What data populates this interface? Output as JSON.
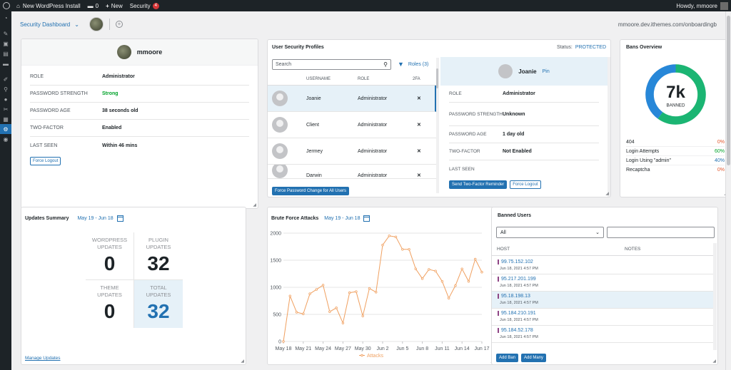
{
  "adminbar": {
    "site_name": "New WordPress Install",
    "comments_count": "0",
    "new_label": "New",
    "security_label": "Security",
    "security_count": "4",
    "howdy": "Howdy, mmoore"
  },
  "topbar": {
    "dashboard_label": "Security Dashboard",
    "site_url": "mmoore.dev.ithemes.com/onboardingb"
  },
  "user_card": {
    "name": "mmoore",
    "rows": [
      {
        "key": "ROLE",
        "value": "Administrator"
      },
      {
        "key": "PASSWORD STRENGTH",
        "value": "Strong"
      },
      {
        "key": "PASSWORD AGE",
        "value": "38 seconds old"
      },
      {
        "key": "TWO-FACTOR",
        "value": "Enabled"
      },
      {
        "key": "LAST SEEN",
        "value": "Within 46 mins"
      }
    ],
    "force_logout": "Force Logout"
  },
  "profiles": {
    "title": "User Security Profiles",
    "status_label": "Status:",
    "status_value": "PROTECTED",
    "search_placeholder": "Search",
    "roles_filter": "Roles (3)",
    "columns": [
      "USERNAME",
      "ROLE",
      "2FA"
    ],
    "users": [
      {
        "username": "Joanie",
        "role": "Administrator",
        "twofa": "✕"
      },
      {
        "username": "Client",
        "role": "Administrator",
        "twofa": "✕"
      },
      {
        "username": "Jermey",
        "role": "Administrator",
        "twofa": "✕"
      },
      {
        "username": "Darwin",
        "role": "Administrator",
        "twofa": "✕"
      }
    ],
    "force_all_button": "Force Password Change for All Users",
    "detail": {
      "name": "Joanie",
      "pin": "Pin",
      "rows": [
        {
          "key": "ROLE",
          "value": "Administrator"
        },
        {
          "key": "PASSWORD STRENGTH",
          "value": "Unknown"
        },
        {
          "key": "PASSWORD AGE",
          "value": "1 day old"
        },
        {
          "key": "TWO-FACTOR",
          "value": "Not Enabled"
        },
        {
          "key": "LAST SEEN",
          "value": ""
        }
      ],
      "reminder_button": "Send Two-Factor Reminder",
      "force_logout": "Force Logout"
    }
  },
  "bans_overview": {
    "title": "Bans Overview",
    "total": "7k",
    "total_label": "BANNED",
    "rows": [
      {
        "label": "404",
        "pct": "0%",
        "color": "#d63638"
      },
      {
        "label": "Login Attempts",
        "pct": "60%",
        "color": "#00a32a"
      },
      {
        "label": "Login Using \"admin\"",
        "pct": "40%",
        "color": "#2271b1"
      },
      {
        "label": "Recaptcha",
        "pct": "0%",
        "color": "#d63638"
      }
    ],
    "colors": {
      "green": "#1bb573",
      "blue": "#2787d8"
    }
  },
  "updates": {
    "title": "Updates Summary",
    "range": "May 19 - Jun 18",
    "cells": [
      {
        "label1": "WORDPRESS",
        "label2": "UPDATES",
        "value": "0"
      },
      {
        "label1": "PLUGIN",
        "label2": "UPDATES",
        "value": "32"
      },
      {
        "label1": "THEME",
        "label2": "UPDATES",
        "value": "0"
      },
      {
        "label1": "TOTAL",
        "label2": "UPDATES",
        "value": "32"
      }
    ],
    "manage_link": "Manage Updates"
  },
  "brute_force": {
    "title": "Brute Force Attacks",
    "range": "May 19 - Jun 18"
  },
  "chart_data": {
    "type": "line",
    "title": "",
    "ylim": [
      0,
      2000
    ],
    "yticks": [
      "0",
      "500",
      "1000",
      "1500",
      "2000"
    ],
    "xticks": [
      "May 18",
      "May 21",
      "May 24",
      "May 27",
      "May 30",
      "Jun 2",
      "Jun 5",
      "Jun 8",
      "Jun 11",
      "Jun 14",
      "Jun 17"
    ],
    "series": [
      {
        "name": "Attacks",
        "color": "#f0a060",
        "x": [
          "May 18",
          "May 19",
          "May 20",
          "May 21",
          "May 22",
          "May 23",
          "May 24",
          "May 25",
          "May 26",
          "May 27",
          "May 28",
          "May 29",
          "May 30",
          "May 31",
          "Jun 1",
          "Jun 2",
          "Jun 3",
          "Jun 4",
          "Jun 5",
          "Jun 6",
          "Jun 7",
          "Jun 8",
          "Jun 9",
          "Jun 10",
          "Jun 11",
          "Jun 12",
          "Jun 13",
          "Jun 14",
          "Jun 15",
          "Jun 16",
          "Jun 17"
        ],
        "values": [
          0,
          840,
          540,
          510,
          880,
          960,
          1040,
          550,
          620,
          340,
          900,
          920,
          470,
          980,
          910,
          1780,
          1950,
          1930,
          1700,
          1700,
          1340,
          1160,
          1330,
          1300,
          1110,
          800,
          1030,
          1340,
          1110,
          1520,
          1280
        ]
      }
    ],
    "legend": "bottom"
  },
  "banned_users": {
    "title": "Banned Users",
    "filter_value": "All",
    "columns": [
      "HOST",
      "NOTES"
    ],
    "rows": [
      {
        "ip": "99.75.152.102",
        "date": "Jun 18, 2021 4:57 PM"
      },
      {
        "ip": "95.217.201.199",
        "date": "Jun 18, 2021 4:57 PM"
      },
      {
        "ip": "95.18.198.13",
        "date": "Jun 18, 2021 4:57 PM"
      },
      {
        "ip": "95.184.210.191",
        "date": "Jun 18, 2021 4:57 PM"
      },
      {
        "ip": "95.184.52.178",
        "date": "Jun 18, 2021 4:57 PM"
      }
    ],
    "add_ban": "Add Ban",
    "add_many": "Add Many"
  }
}
